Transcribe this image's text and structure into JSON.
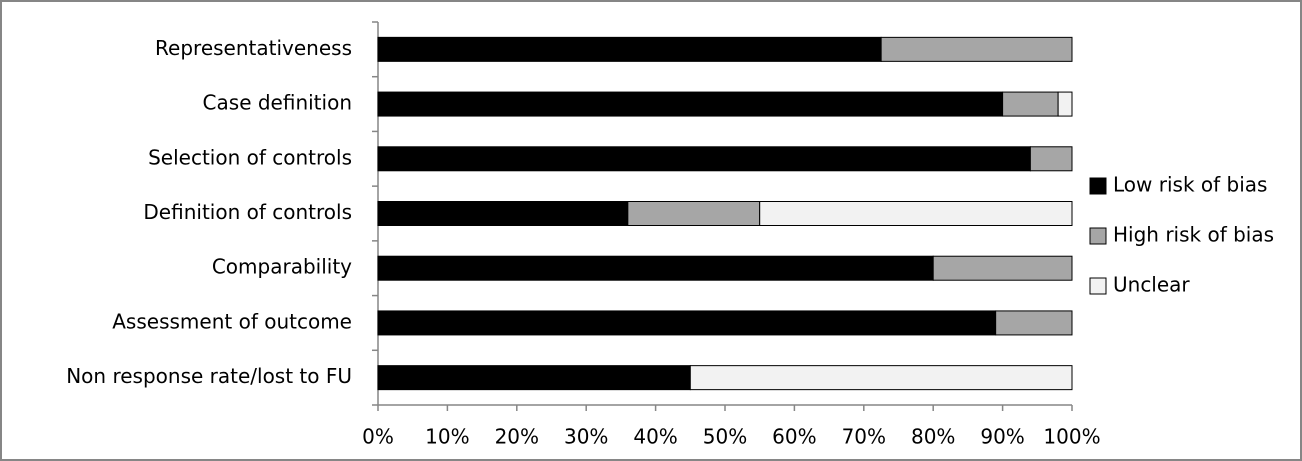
{
  "chart_data": {
    "type": "stacked-bar-horizontal",
    "categories": [
      "Representativeness",
      "Case definition",
      "Selection of controls",
      "Definition of controls",
      "Comparability",
      "Assessment of outcome",
      "Non response rate/lost to FU"
    ],
    "series": [
      {
        "name": "Low risk of bias",
        "color": "#000000",
        "values": [
          72.5,
          90,
          94,
          36,
          80,
          89,
          45
        ]
      },
      {
        "name": "High risk of bias",
        "color": "#a6a6a6",
        "values": [
          27.5,
          8,
          6,
          19,
          20,
          11,
          0
        ]
      },
      {
        "name": "Unclear",
        "color": "#f2f2f2",
        "values": [
          0,
          2,
          0,
          45,
          0,
          0,
          55
        ]
      }
    ],
    "xlim": [
      0,
      100
    ],
    "xticks": [
      {
        "value": 0,
        "label": "0%"
      },
      {
        "value": 10,
        "label": "10%"
      },
      {
        "value": 20,
        "label": "20%"
      },
      {
        "value": 30,
        "label": "30%"
      },
      {
        "value": 40,
        "label": "40%"
      },
      {
        "value": 50,
        "label": "50%"
      },
      {
        "value": 60,
        "label": "60%"
      },
      {
        "value": 70,
        "label": "70%"
      },
      {
        "value": 80,
        "label": "80%"
      },
      {
        "value": 90,
        "label": "90%"
      },
      {
        "value": 100,
        "label": "100%"
      }
    ],
    "legend": "right"
  }
}
